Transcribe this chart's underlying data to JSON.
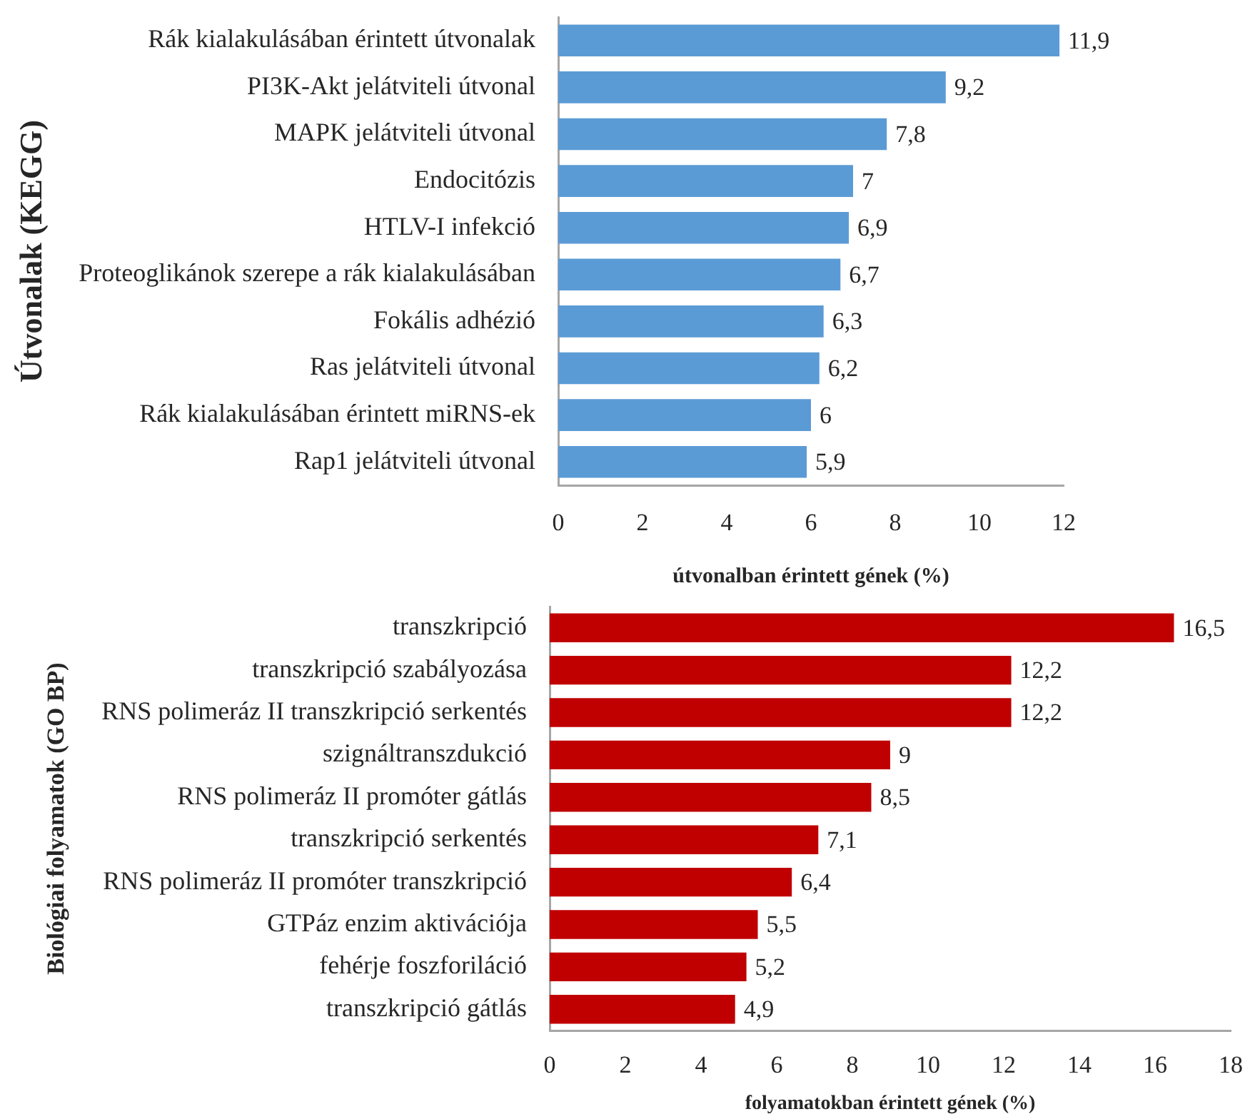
{
  "chart_data": [
    {
      "type": "bar",
      "orientation": "horizontal",
      "ylabel": "Útvonalak (KEGG)",
      "xlabel": "útvonalban érintett gének (%)",
      "categories": [
        "Rák kialakulásában érintett útvonalak",
        "PI3K-Akt jelátviteli útvonal",
        "MAPK jelátviteli útvonal",
        "Endocitózis",
        "HTLV-I infekció",
        "Proteoglikánok szerepe a rák kialakulásában",
        "Fokális adhézió",
        "Ras jelátviteli útvonal",
        "Rák kialakulásában érintett miRNS-ek",
        "Rap1 jelátviteli útvonal"
      ],
      "values": [
        11.9,
        9.2,
        7.8,
        7,
        6.9,
        6.7,
        6.3,
        6.2,
        6,
        5.9
      ],
      "value_labels": [
        "11,9",
        "9,2",
        "7,8",
        "7",
        "6,9",
        "6,7",
        "6,3",
        "6,2",
        "6",
        "5,9"
      ],
      "color": "#5b9bd5",
      "xlim": [
        0,
        12
      ],
      "xticks": [
        0,
        2,
        4,
        6,
        8,
        10,
        12
      ]
    },
    {
      "type": "bar",
      "orientation": "horizontal",
      "ylabel": "Biológiai folyamatok (GO BP)",
      "xlabel": "folyamatokban érintett gének (%)",
      "categories": [
        "transzkripció",
        "transzkripció szabályozása",
        "RNS polimeráz II transzkripció serkentés",
        "szignáltranszdukció",
        "RNS polimeráz II promóter gátlás",
        "transzkripció serkentés",
        "RNS polimeráz II promóter transzkripció",
        "GTPáz enzim aktivációja",
        "fehérje foszforiláció",
        "transzkripció gátlás"
      ],
      "values": [
        16.5,
        12.2,
        12.2,
        9,
        8.5,
        7.1,
        6.4,
        5.5,
        5.2,
        4.9
      ],
      "value_labels": [
        "16,5",
        "12,2",
        "12,2",
        "9",
        "8,5",
        "7,1",
        "6,4",
        "5,5",
        "5,2",
        "4,9"
      ],
      "color": "#c00000",
      "xlim": [
        0,
        18
      ],
      "xticks": [
        0,
        2,
        4,
        6,
        8,
        10,
        12,
        14,
        16,
        18
      ]
    }
  ]
}
